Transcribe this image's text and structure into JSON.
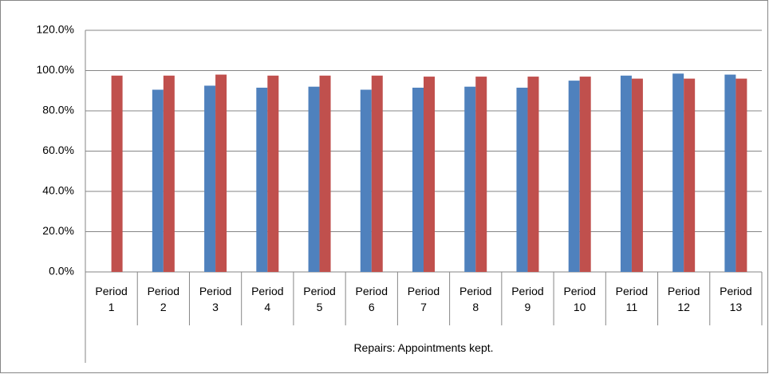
{
  "chart_data": {
    "type": "bar",
    "group_label": "Repairs: Appointments kept.",
    "categories": [
      "Period 1",
      "Period 2",
      "Period 3",
      "Period 4",
      "Period 5",
      "Period 6",
      "Period 7",
      "Period 8",
      "Period 9",
      "Period 10",
      "Period 11",
      "Period 12",
      "Period 13"
    ],
    "series": [
      {
        "color": "#4f81bd",
        "values": [
          null,
          90.5,
          92.5,
          91.5,
          92,
          90.5,
          91.5,
          92,
          91.5,
          95,
          97.5,
          98.5,
          98
        ]
      },
      {
        "color": "#c0504d",
        "values": [
          97.5,
          97.5,
          98,
          97.5,
          97.5,
          97.5,
          97,
          97,
          97,
          97,
          96,
          96,
          96
        ]
      }
    ],
    "ylim": [
      0,
      120
    ],
    "yticks": [
      {
        "value": 0,
        "label": "0.0%"
      },
      {
        "value": 20,
        "label": "20.0%"
      },
      {
        "value": 40,
        "label": "40.0%"
      },
      {
        "value": 60,
        "label": "60.0%"
      },
      {
        "value": 80,
        "label": "80.0%"
      },
      {
        "value": 100,
        "label": "100.0%"
      },
      {
        "value": 120,
        "label": "120.0%"
      }
    ],
    "grid": true
  }
}
